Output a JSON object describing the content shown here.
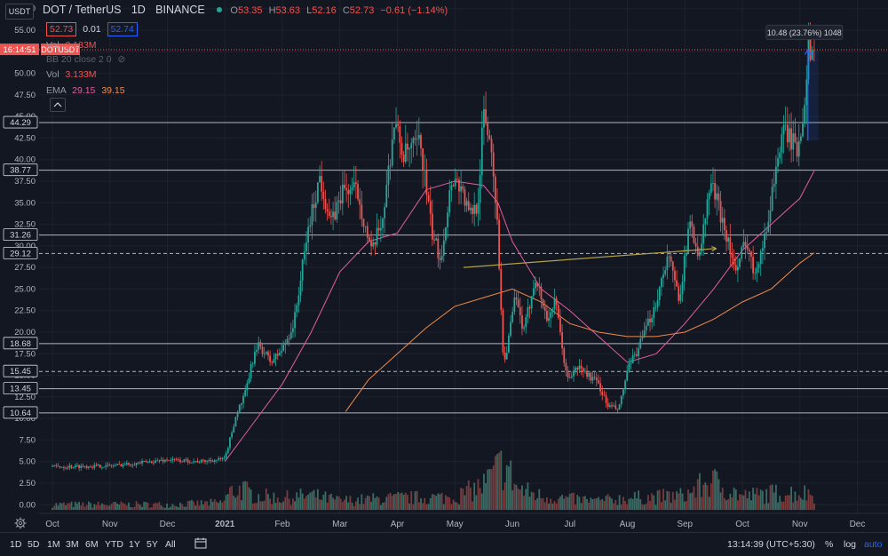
{
  "header": {
    "pair": "DOT / TetherUS",
    "interval": "1D",
    "exchange": "BINANCE",
    "ohlc": {
      "o_label": "O",
      "o": "53.35",
      "h_label": "H",
      "h": "53.63",
      "l_label": "L",
      "l": "52.16",
      "c_label": "C",
      "c": "52.73",
      "chg": "−0.61 (−1.14%)"
    },
    "bid": "52.73",
    "spread": "0.01",
    "ask": "52.74"
  },
  "indicators": {
    "vol1": {
      "name": "Vol",
      "value": "3.133M"
    },
    "bb": {
      "name": "BB 20 close 2 0"
    },
    "symbol_tag": "DOTUSDT",
    "vol2": {
      "name": "Vol",
      "value": "3.133M"
    },
    "ema": {
      "name": "EMA",
      "v1": "29.15",
      "v2": "39.15"
    }
  },
  "toolbar": {
    "currency_btn": "USDT",
    "gear_icon": "gear-icon"
  },
  "countdown": "16:14:51",
  "chart_data": {
    "type": "candlestick",
    "title": "DOT / TetherUS 1D BINANCE",
    "ylim": [
      -1.0,
      58.5
    ],
    "y_ticks": [
      "57.50",
      "55.00",
      "52.50",
      "50.00",
      "47.50",
      "45.00",
      "42.50",
      "40.00",
      "37.50",
      "35.00",
      "32.50",
      "30.00",
      "27.50",
      "25.00",
      "22.50",
      "20.00",
      "17.50",
      "15.00",
      "12.50",
      "10.00",
      "7.50",
      "5.00",
      "2.50",
      "0.00"
    ],
    "x_ticks": [
      {
        "label": "Oct",
        "pos": 0.0
      },
      {
        "label": "Nov",
        "pos": 1.0
      },
      {
        "label": "Dec",
        "pos": 2.0
      },
      {
        "label": "2021",
        "pos": 3.0
      },
      {
        "label": "Feb",
        "pos": 4.0
      },
      {
        "label": "Mar",
        "pos": 5.0
      },
      {
        "label": "Apr",
        "pos": 6.0
      },
      {
        "label": "May",
        "pos": 7.0
      },
      {
        "label": "Jun",
        "pos": 8.0
      },
      {
        "label": "Jul",
        "pos": 9.0
      },
      {
        "label": "Aug",
        "pos": 10.0
      },
      {
        "label": "Sep",
        "pos": 11.0
      },
      {
        "label": "Oct",
        "pos": 12.0
      },
      {
        "label": "Nov",
        "pos": 13.0
      },
      {
        "label": "Dec",
        "pos": 14.0
      }
    ],
    "price_keypoints": [
      [
        0.0,
        4.4
      ],
      [
        1.0,
        4.5
      ],
      [
        2.0,
        5.2
      ],
      [
        2.55,
        5.0
      ],
      [
        3.0,
        5.3
      ],
      [
        3.2,
        10.5
      ],
      [
        3.35,
        12.8
      ],
      [
        3.5,
        17.2
      ],
      [
        3.6,
        18.5
      ],
      [
        3.8,
        16.5
      ],
      [
        4.0,
        18.0
      ],
      [
        4.2,
        21.0
      ],
      [
        4.45,
        32.0
      ],
      [
        4.65,
        38.0
      ],
      [
        4.85,
        32.5
      ],
      [
        5.05,
        36.5
      ],
      [
        5.3,
        36.5
      ],
      [
        5.55,
        29.0
      ],
      [
        5.75,
        33.5
      ],
      [
        5.95,
        44.5
      ],
      [
        6.1,
        40.5
      ],
      [
        6.4,
        42.0
      ],
      [
        6.6,
        31.5
      ],
      [
        6.75,
        28.5
      ],
      [
        6.95,
        38.0
      ],
      [
        7.1,
        37.0
      ],
      [
        7.25,
        33.5
      ],
      [
        7.4,
        35.0
      ],
      [
        7.5,
        45.5
      ],
      [
        7.65,
        41.0
      ],
      [
        7.75,
        31.0
      ],
      [
        7.85,
        16.0
      ],
      [
        8.05,
        24.0
      ],
      [
        8.2,
        20.0
      ],
      [
        8.4,
        26.5
      ],
      [
        8.6,
        21.5
      ],
      [
        8.75,
        23.5
      ],
      [
        8.95,
        14.5
      ],
      [
        9.15,
        16.0
      ],
      [
        9.5,
        14.0
      ],
      [
        9.65,
        11.5
      ],
      [
        9.85,
        11.0
      ],
      [
        10.0,
        15.5
      ],
      [
        10.25,
        19.0
      ],
      [
        10.5,
        23.5
      ],
      [
        10.7,
        29.0
      ],
      [
        10.9,
        24.0
      ],
      [
        11.1,
        33.0
      ],
      [
        11.25,
        28.5
      ],
      [
        11.45,
        37.5
      ],
      [
        11.7,
        32.0
      ],
      [
        11.9,
        26.5
      ],
      [
        12.05,
        31.0
      ],
      [
        12.2,
        27.0
      ],
      [
        12.4,
        31.0
      ],
      [
        12.6,
        40.0
      ],
      [
        12.75,
        43.5
      ],
      [
        12.95,
        41.0
      ],
      [
        13.05,
        45.0
      ],
      [
        13.15,
        53.0
      ],
      [
        13.25,
        52.7
      ]
    ],
    "volume_keypoints": [
      [
        0.0,
        0.6
      ],
      [
        1.0,
        0.6
      ],
      [
        2.0,
        0.6
      ],
      [
        2.95,
        0.8
      ],
      [
        3.1,
        2.0
      ],
      [
        3.3,
        2.3
      ],
      [
        3.5,
        1.6
      ],
      [
        4.0,
        1.3
      ],
      [
        4.5,
        1.6
      ],
      [
        5.0,
        1.0
      ],
      [
        6.0,
        1.3
      ],
      [
        7.0,
        1.4
      ],
      [
        7.5,
        2.7
      ],
      [
        7.85,
        5.1
      ],
      [
        8.1,
        2.3
      ],
      [
        8.5,
        1.5
      ],
      [
        9.0,
        1.2
      ],
      [
        9.5,
        1.0
      ],
      [
        10.0,
        1.3
      ],
      [
        10.5,
        1.4
      ],
      [
        11.0,
        1.6
      ],
      [
        11.45,
        3.2
      ],
      [
        12.0,
        1.5
      ],
      [
        12.7,
        1.9
      ],
      [
        13.25,
        1.8
      ]
    ],
    "horizontal_levels": [
      {
        "value": 44.29,
        "label": "44.29",
        "style": "solid"
      },
      {
        "value": 38.77,
        "label": "38.77",
        "style": "solid"
      },
      {
        "value": 31.26,
        "label": "31.26",
        "style": "solid"
      },
      {
        "value": 29.12,
        "label": "29.12",
        "style": "dashed"
      },
      {
        "value": 18.68,
        "label": "18.68",
        "style": "solid"
      },
      {
        "value": 15.45,
        "label": "15.45",
        "style": "dashed"
      },
      {
        "value": 13.45,
        "label": "13.45",
        "style": "solid"
      },
      {
        "value": 10.64,
        "label": "10.64",
        "style": "solid"
      },
      {
        "value": 52.73,
        "label": "52.73",
        "style": "dotted-red"
      }
    ],
    "ma_fast_keypoints": [
      [
        3.0,
        5.0
      ],
      [
        3.5,
        9.5
      ],
      [
        4.0,
        14.0
      ],
      [
        4.5,
        20.0
      ],
      [
        5.0,
        27.0
      ],
      [
        5.5,
        30.5
      ],
      [
        6.0,
        31.5
      ],
      [
        6.5,
        36.5
      ],
      [
        7.0,
        37.5
      ],
      [
        7.5,
        37.0
      ],
      [
        7.75,
        35.0
      ],
      [
        8.0,
        30.5
      ],
      [
        8.5,
        25.0
      ],
      [
        9.0,
        22.5
      ],
      [
        9.5,
        19.5
      ],
      [
        10.0,
        16.5
      ],
      [
        10.5,
        17.5
      ],
      [
        11.0,
        21.0
      ],
      [
        11.5,
        25.0
      ],
      [
        12.0,
        29.5
      ],
      [
        12.5,
        32.5
      ],
      [
        13.0,
        35.5
      ],
      [
        13.25,
        38.7
      ]
    ],
    "ma_slow_keypoints": [
      [
        5.1,
        10.8
      ],
      [
        5.5,
        14.5
      ],
      [
        6.0,
        17.5
      ],
      [
        6.5,
        20.5
      ],
      [
        7.0,
        23.0
      ],
      [
        7.5,
        24.0
      ],
      [
        8.0,
        25.0
      ],
      [
        8.5,
        23.5
      ],
      [
        9.0,
        21.0
      ],
      [
        9.5,
        20.0
      ],
      [
        10.0,
        19.5
      ],
      [
        10.5,
        19.5
      ],
      [
        11.0,
        20.0
      ],
      [
        11.5,
        21.5
      ],
      [
        12.0,
        23.5
      ],
      [
        12.5,
        25.0
      ],
      [
        13.0,
        28.0
      ],
      [
        13.25,
        29.2
      ]
    ],
    "trendline": {
      "from": [
        7.15,
        27.5
      ],
      "to": [
        11.55,
        29.7
      ]
    },
    "measure": {
      "from": [
        13.14,
        42.2
      ],
      "to": [
        13.14,
        52.7
      ],
      "label": "10.48 (23.76%) 1048"
    }
  },
  "timeframes": [
    "1D",
    "5D",
    "1M",
    "3M",
    "6M",
    "YTD",
    "1Y",
    "5Y",
    "All"
  ],
  "footer": {
    "clock": "13:14:39 (UTC+5:30)",
    "pct": "%",
    "log": "log",
    "auto": "auto"
  }
}
